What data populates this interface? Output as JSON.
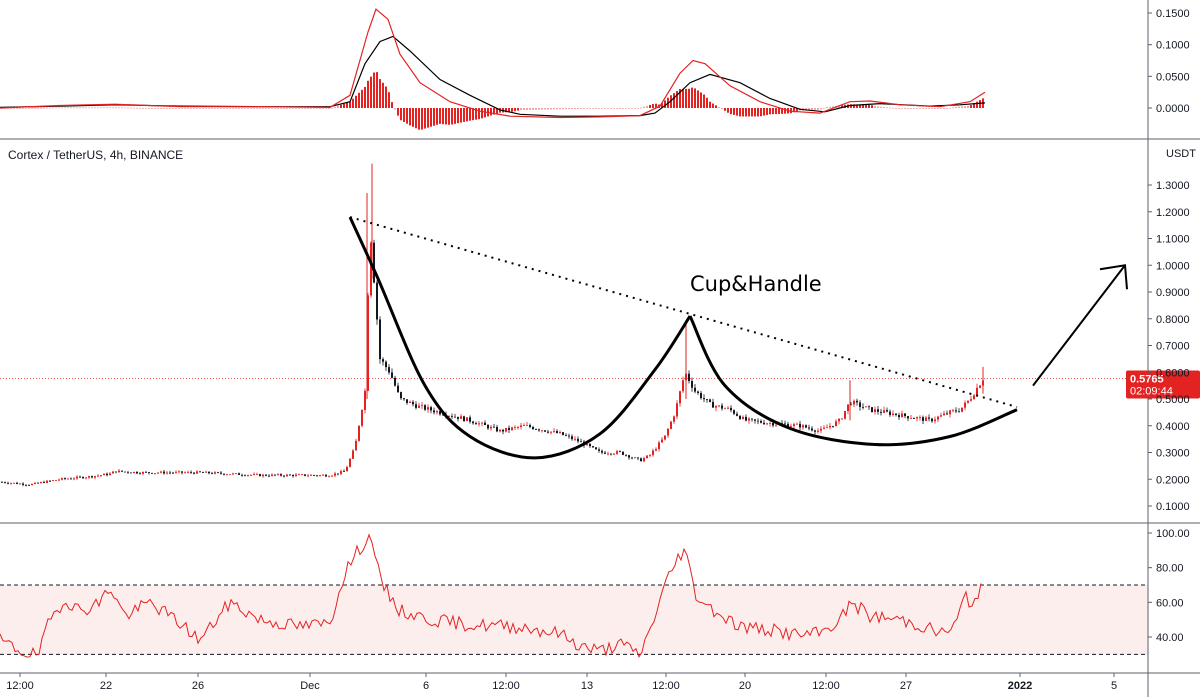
{
  "chart_data": [
    {
      "panel": "macd",
      "type": "line",
      "y_ticks": [
        "0.1500",
        "0.1000",
        "0.0500",
        "0.0000"
      ],
      "ylim": [
        -0.022,
        0.162
      ],
      "series": [
        {
          "color": "#000000",
          "points": [
            [
              0,
              0.001
            ],
            [
              60,
              0.003
            ],
            [
              115,
              0.005
            ],
            [
              180,
              0.003
            ],
            [
              260,
              0.002
            ],
            [
              330,
              0.002
            ],
            [
              350,
              0.01
            ],
            [
              365,
              0.07
            ],
            [
              380,
              0.105
            ],
            [
              393,
              0.113
            ],
            [
              410,
              0.09
            ],
            [
              440,
              0.045
            ],
            [
              470,
              0.02
            ],
            [
              500,
              -0.003
            ],
            [
              520,
              -0.01
            ],
            [
              560,
              -0.013
            ],
            [
              600,
              -0.013
            ],
            [
              640,
              -0.012
            ],
            [
              655,
              -0.008
            ],
            [
              670,
              0.01
            ],
            [
              690,
              0.04
            ],
            [
              710,
              0.053
            ],
            [
              740,
              0.04
            ],
            [
              770,
              0.015
            ],
            [
              800,
              -0.002
            ],
            [
              825,
              -0.006
            ],
            [
              850,
              0.004
            ],
            [
              880,
              0.007
            ],
            [
              930,
              0.003
            ],
            [
              960,
              0.005
            ],
            [
              985,
              0.008
            ]
          ]
        },
        {
          "color": "#e32222",
          "points": [
            [
              0,
              0.0
            ],
            [
              60,
              0.004
            ],
            [
              115,
              0.006
            ],
            [
              180,
              0.002
            ],
            [
              260,
              0.002
            ],
            [
              330,
              0.001
            ],
            [
              350,
              0.02
            ],
            [
              368,
              0.12
            ],
            [
              376,
              0.156
            ],
            [
              388,
              0.14
            ],
            [
              400,
              0.085
            ],
            [
              420,
              0.04
            ],
            [
              450,
              0.01
            ],
            [
              480,
              -0.005
            ],
            [
              510,
              -0.013
            ],
            [
              560,
              -0.015
            ],
            [
              600,
              -0.014
            ],
            [
              640,
              -0.012
            ],
            [
              660,
              0.003
            ],
            [
              680,
              0.055
            ],
            [
              693,
              0.075
            ],
            [
              705,
              0.07
            ],
            [
              730,
              0.035
            ],
            [
              760,
              0.01
            ],
            [
              790,
              -0.005
            ],
            [
              820,
              -0.008
            ],
            [
              850,
              0.01
            ],
            [
              870,
              0.011
            ],
            [
              900,
              0.005
            ],
            [
              940,
              0.002
            ],
            [
              970,
              0.01
            ],
            [
              985,
              0.025
            ]
          ]
        }
      ]
    },
    {
      "panel": "price",
      "type": "candlestick",
      "title": "Cortex / TetherUS, 4h, BINANCE",
      "currency": "USDT",
      "last_price": "0.5765",
      "countdown": "02:09:44",
      "ylim": [
        0.06,
        1.42
      ],
      "y_ticks": [
        "1.3000",
        "1.2000",
        "1.1000",
        "1.0000",
        "0.9000",
        "0.8000",
        "0.7000",
        "0.6000",
        "0.5000",
        "0.4000",
        "0.3000",
        "0.2000",
        "0.1000"
      ],
      "price_anchors": [
        [
          0,
          0.19
        ],
        [
          30,
          0.18
        ],
        [
          60,
          0.2
        ],
        [
          90,
          0.21
        ],
        [
          110,
          0.22
        ],
        [
          115,
          0.23
        ],
        [
          140,
          0.225
        ],
        [
          200,
          0.225
        ],
        [
          260,
          0.215
        ],
        [
          330,
          0.215
        ],
        [
          345,
          0.23
        ],
        [
          355,
          0.32
        ],
        [
          365,
          0.53
        ],
        [
          370,
          1.15
        ],
        [
          375,
          0.9
        ],
        [
          380,
          0.65
        ],
        [
          390,
          0.6
        ],
        [
          400,
          0.5
        ],
        [
          420,
          0.47
        ],
        [
          440,
          0.45
        ],
        [
          470,
          0.42
        ],
        [
          500,
          0.38
        ],
        [
          525,
          0.4
        ],
        [
          560,
          0.37
        ],
        [
          580,
          0.34
        ],
        [
          600,
          0.3
        ],
        [
          620,
          0.3
        ],
        [
          640,
          0.27
        ],
        [
          650,
          0.29
        ],
        [
          665,
          0.36
        ],
        [
          675,
          0.45
        ],
        [
          685,
          0.6
        ],
        [
          695,
          0.53
        ],
        [
          710,
          0.48
        ],
        [
          730,
          0.46
        ],
        [
          745,
          0.42
        ],
        [
          770,
          0.41
        ],
        [
          800,
          0.4
        ],
        [
          820,
          0.38
        ],
        [
          840,
          0.42
        ],
        [
          850,
          0.49
        ],
        [
          870,
          0.46
        ],
        [
          900,
          0.44
        ],
        [
          930,
          0.42
        ],
        [
          950,
          0.45
        ],
        [
          960,
          0.46
        ],
        [
          970,
          0.5
        ],
        [
          983,
          0.5765
        ]
      ],
      "annotations": {
        "label": "Cup&Handle",
        "trendline": [
          [
            350,
            1.18
          ],
          [
            1017,
            0.47
          ]
        ],
        "cup": [
          [
            350,
            1.18
          ],
          [
            378,
            0.95
          ],
          [
            425,
            0.55
          ],
          [
            470,
            0.36
          ],
          [
            535,
            0.28
          ],
          [
            600,
            0.37
          ],
          [
            655,
            0.61
          ],
          [
            690,
            0.81
          ]
        ],
        "handle": [
          [
            690,
            0.81
          ],
          [
            725,
            0.55
          ],
          [
            790,
            0.39
          ],
          [
            875,
            0.33
          ],
          [
            950,
            0.36
          ],
          [
            1017,
            0.46
          ]
        ],
        "arrow": [
          [
            1033,
            0.55
          ],
          [
            1125,
            1.0
          ]
        ]
      }
    },
    {
      "panel": "rsi",
      "type": "line",
      "y_ticks": [
        "100.00",
        "80.00",
        "60.00",
        "40.00"
      ],
      "ylim": [
        25,
        100
      ],
      "bands": [
        30,
        70
      ],
      "series": [
        {
          "color": "#e32222",
          "points": [
            [
              0,
              38
            ],
            [
              20,
              32
            ],
            [
              38,
              29
            ],
            [
              50,
              50
            ],
            [
              65,
              62
            ],
            [
              80,
              55
            ],
            [
              100,
              60
            ],
            [
              110,
              69
            ],
            [
              125,
              52
            ],
            [
              150,
              60
            ],
            [
              180,
              48
            ],
            [
              200,
              38
            ],
            [
              230,
              60
            ],
            [
              260,
              50
            ],
            [
              300,
              46
            ],
            [
              330,
              48
            ],
            [
              345,
              78
            ],
            [
              362,
              93
            ],
            [
              372,
              98
            ],
            [
              380,
              72
            ],
            [
              400,
              55
            ],
            [
              430,
              50
            ],
            [
              470,
              47
            ],
            [
              520,
              46
            ],
            [
              560,
              42
            ],
            [
              580,
              35
            ],
            [
              600,
              32
            ],
            [
              620,
              36
            ],
            [
              640,
              30
            ],
            [
              650,
              44
            ],
            [
              665,
              70
            ],
            [
              678,
              86
            ],
            [
              685,
              91
            ],
            [
              695,
              65
            ],
            [
              710,
              57
            ],
            [
              740,
              46
            ],
            [
              770,
              44
            ],
            [
              800,
              41
            ],
            [
              820,
              42
            ],
            [
              840,
              50
            ],
            [
              852,
              60
            ],
            [
              870,
              52
            ],
            [
              900,
              50
            ],
            [
              925,
              46
            ],
            [
              940,
              42
            ],
            [
              955,
              46
            ],
            [
              965,
              64
            ],
            [
              972,
              58
            ],
            [
              983,
              73
            ]
          ]
        }
      ]
    }
  ],
  "x_axis": {
    "ticks": [
      "12:00",
      "22",
      "26",
      "Dec",
      "6",
      "12:00",
      "13",
      "12:00",
      "20",
      "12:00",
      "27",
      "2022",
      "5"
    ]
  }
}
